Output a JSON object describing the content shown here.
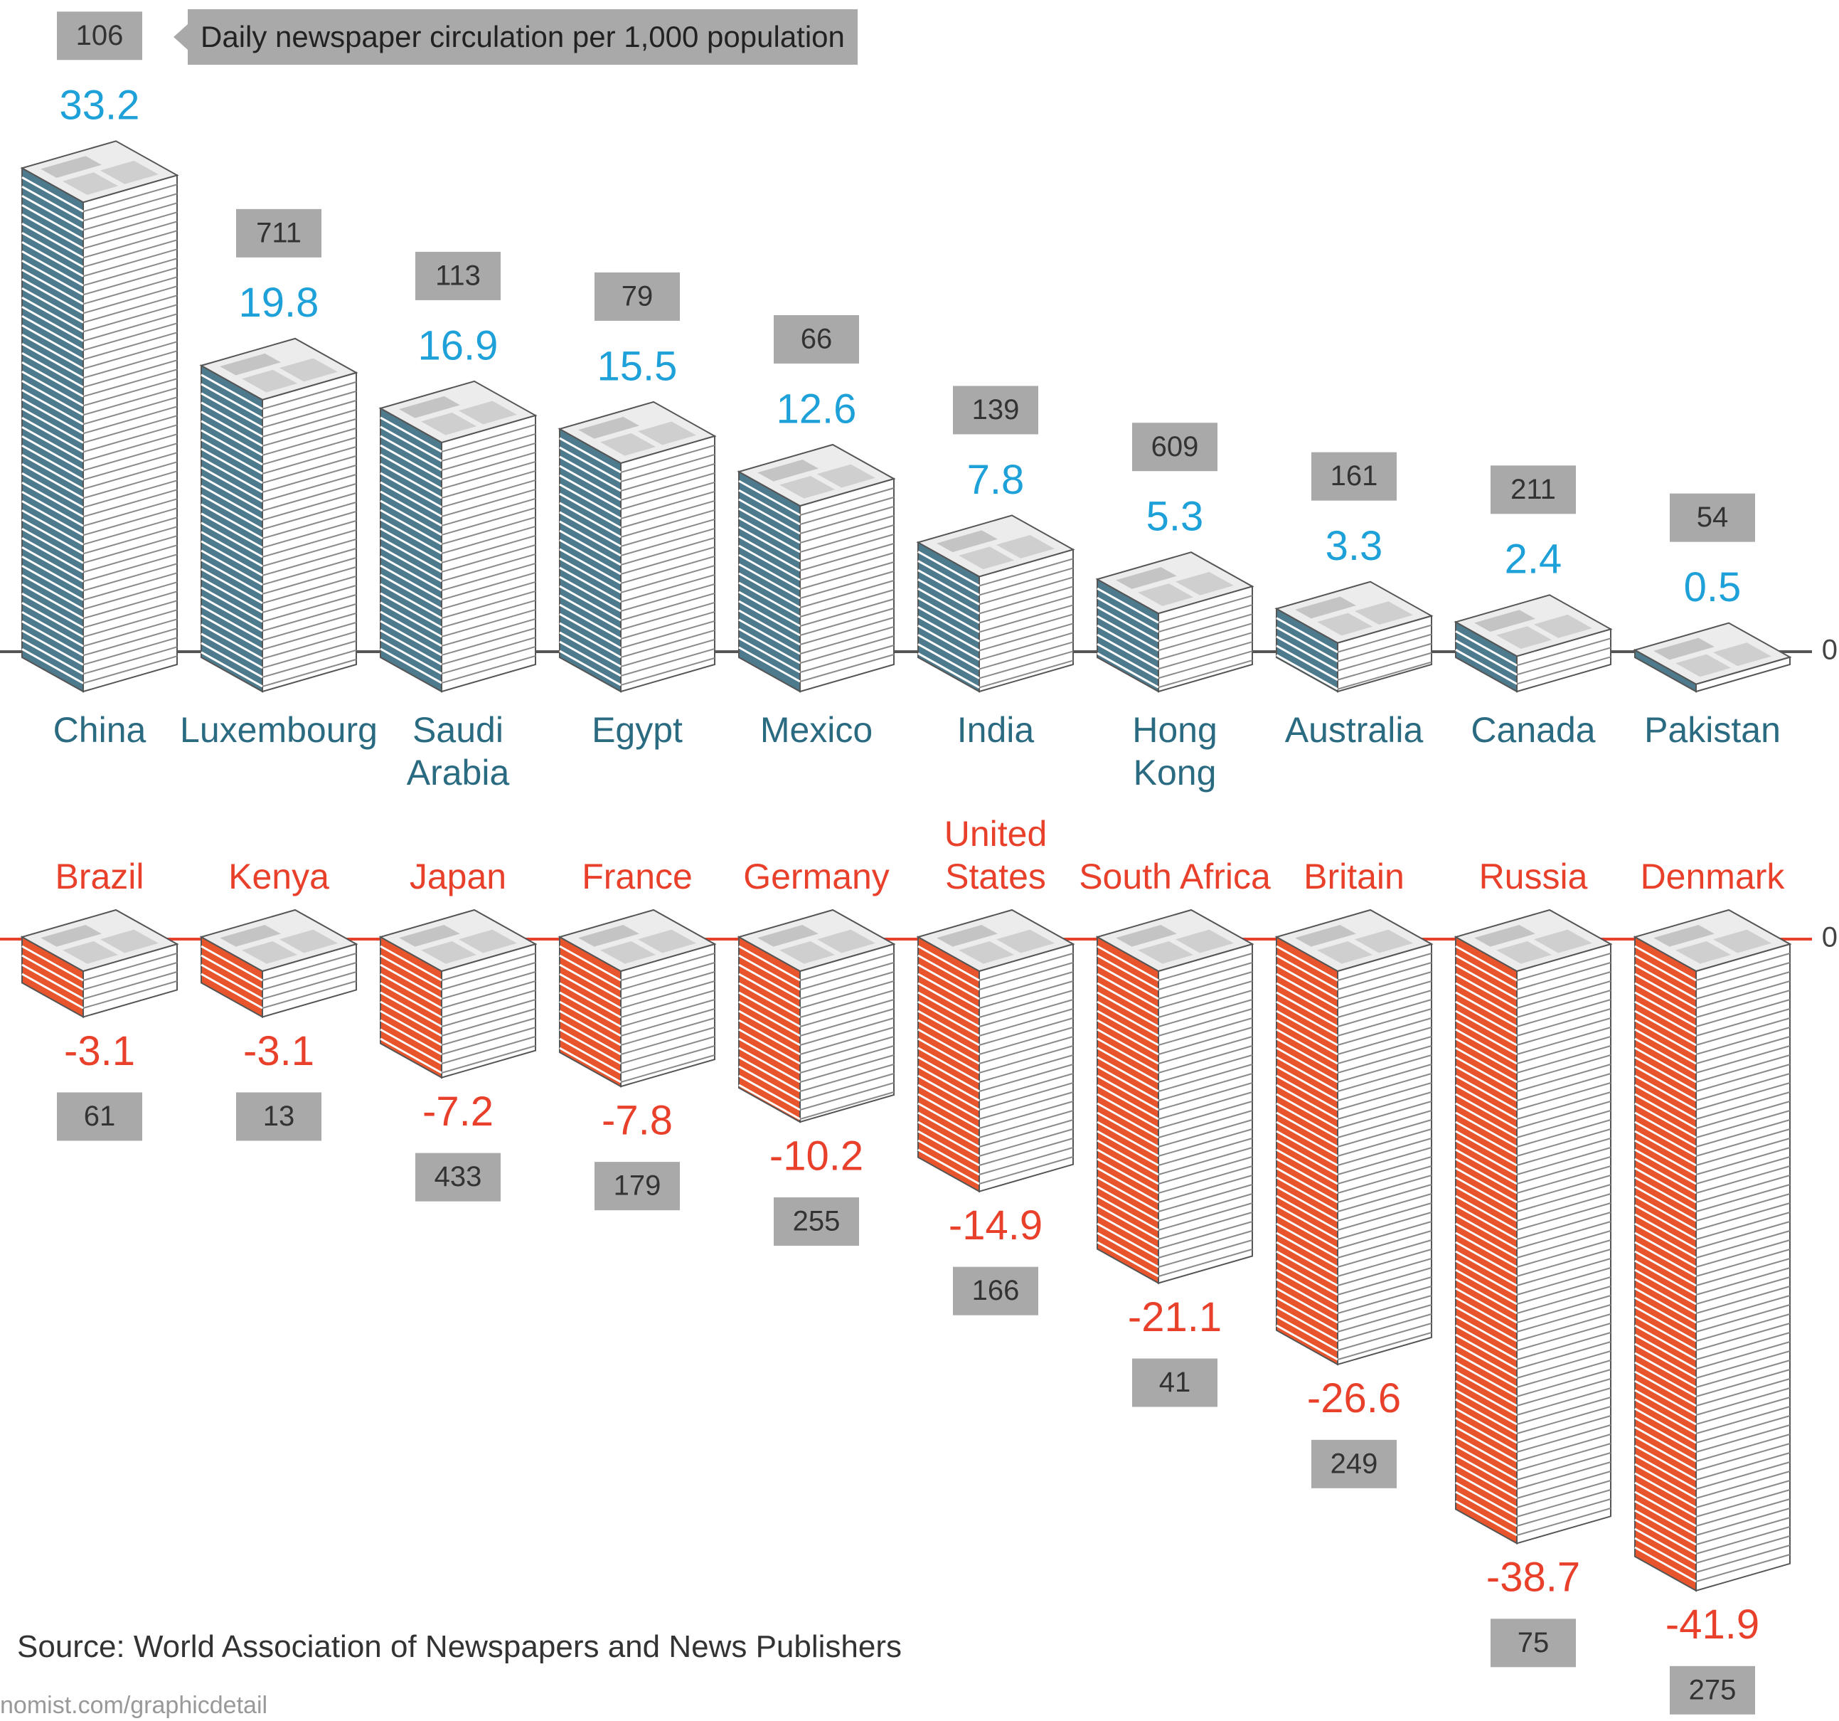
{
  "legend": "Daily newspaper circulation per 1,000 population",
  "source": "Source: World Association of Newspapers and News Publishers",
  "credit": "nomist.com/graphicdetail",
  "chart_data": [
    {
      "type": "bar",
      "categories": [
        "China",
        "Luxembourg",
        "Saudi\nArabia",
        "Egypt",
        "Mexico",
        "India",
        "Hong\nKong",
        "Australia",
        "Canada",
        "Pakistan"
      ],
      "values": [
        33.2,
        19.8,
        16.9,
        15.5,
        12.6,
        7.8,
        5.3,
        3.3,
        2.4,
        0.5
      ],
      "circulation": [
        106,
        711,
        113,
        79,
        66,
        139,
        609,
        161,
        211,
        54
      ],
      "color": "#4d7a8c",
      "label_color": "#1ea0d8",
      "category_color": "#2b6b82",
      "axis_color": "#555555",
      "ylim": [
        0,
        35
      ],
      "yticks": [
        0
      ]
    },
    {
      "type": "bar",
      "categories": [
        "Brazil",
        "Kenya",
        "Japan",
        "France",
        "Germany",
        "United\nStates",
        "South Africa",
        "Britain",
        "Russia",
        "Denmark"
      ],
      "values": [
        -3.1,
        -3.1,
        -7.2,
        -7.8,
        -10.2,
        -14.9,
        -21.1,
        -26.6,
        -38.7,
        -41.9
      ],
      "circulation": [
        61,
        13,
        433,
        179,
        255,
        166,
        41,
        249,
        75,
        275
      ],
      "color": "#e8542b",
      "label_color": "#e8402a",
      "category_color": "#e8402a",
      "axis_color": "#e8402a",
      "ylim": [
        -46,
        0
      ],
      "yticks": [
        0
      ]
    }
  ]
}
